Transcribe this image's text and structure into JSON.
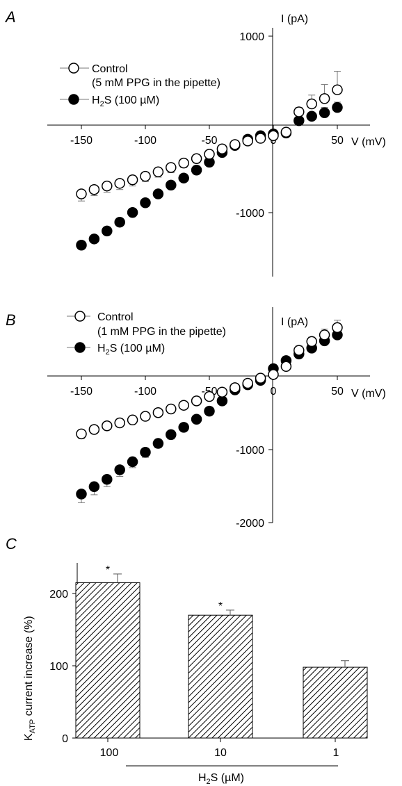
{
  "chart_data": [
    {
      "type": "scatter",
      "panel_label": "A",
      "xlabel": "V (mV)",
      "ylabel": "I (pA)",
      "x_ticks": [
        "-150",
        "-100",
        "-50",
        "0",
        "50"
      ],
      "y_ticks": [
        "1000",
        "-1000"
      ],
      "xlim": [
        -170,
        65
      ],
      "ylim": [
        -1420,
        1100
      ],
      "legend": [
        "Control",
        "(5 mM PPG in the pipette)",
        "H2S (100 µM)"
      ],
      "legend_position": "top-left",
      "series": [
        {
          "name": "Control",
          "marker": "open-circle",
          "x": [
            -150,
            -140,
            -130,
            -120,
            -110,
            -100,
            -90,
            -80,
            -70,
            -60,
            -50,
            -40,
            -30,
            -20,
            -10,
            0,
            10,
            20,
            30,
            40,
            50
          ],
          "y": [
            -780,
            -730,
            -690,
            -660,
            -620,
            -580,
            -530,
            -480,
            -430,
            -380,
            -330,
            -270,
            -220,
            -180,
            -150,
            -120,
            -80,
            150,
            240,
            300,
            400
          ],
          "error": [
            80,
            70,
            70,
            70,
            70,
            60,
            60,
            60,
            50,
            50,
            40,
            30,
            20,
            10,
            10,
            10,
            20,
            50,
            100,
            160,
            210
          ]
        },
        {
          "name": "H2S (100 µM)",
          "marker": "filled-circle",
          "x": [
            -150,
            -140,
            -130,
            -120,
            -110,
            -100,
            -90,
            -80,
            -70,
            -60,
            -50,
            -40,
            -30,
            -20,
            -10,
            0,
            10,
            20,
            30,
            40,
            50
          ],
          "y": [
            -1360,
            -1290,
            -1200,
            -1100,
            -990,
            -880,
            -780,
            -680,
            -600,
            -510,
            -420,
            -310,
            -230,
            -160,
            -120,
            -100,
            -90,
            50,
            100,
            140,
            200
          ],
          "error": [
            40,
            40,
            40,
            40,
            40,
            40,
            40,
            30,
            30,
            30,
            30,
            30,
            20,
            20,
            20,
            10,
            20,
            30,
            40,
            60,
            60
          ]
        }
      ]
    },
    {
      "type": "scatter",
      "panel_label": "B",
      "xlabel": "V (mV)",
      "ylabel": "I (pA)",
      "x_ticks": [
        "-150",
        "-100",
        "-50",
        "0",
        "50"
      ],
      "y_ticks": [
        "-1000",
        "-2000"
      ],
      "xlim": [
        -170,
        65
      ],
      "ylim": [
        -2100,
        950
      ],
      "legend": [
        "Control",
        "(1 mM PPG in the pipette)",
        "H2S (100 µM)"
      ],
      "legend_position": "top-left",
      "series": [
        {
          "name": "Control",
          "marker": "open-circle",
          "x": [
            -150,
            -140,
            -130,
            -120,
            -110,
            -100,
            -90,
            -80,
            -70,
            -60,
            -50,
            -40,
            -30,
            -20,
            -10,
            0,
            10,
            20,
            30,
            40,
            50
          ],
          "y": [
            -790,
            -730,
            -680,
            -640,
            -600,
            -550,
            -500,
            -450,
            -400,
            -340,
            -280,
            -220,
            -160,
            -100,
            -30,
            20,
            130,
            350,
            470,
            560,
            660
          ],
          "error": [
            60,
            50,
            50,
            50,
            50,
            50,
            40,
            40,
            40,
            40,
            40,
            30,
            30,
            30,
            20,
            20,
            30,
            60,
            60,
            80,
            100
          ]
        },
        {
          "name": "H2S (100 µM)",
          "marker": "filled-circle",
          "x": [
            -150,
            -140,
            -130,
            -120,
            -110,
            -100,
            -90,
            -80,
            -70,
            -60,
            -50,
            -40,
            -30,
            -20,
            -10,
            0,
            10,
            20,
            30,
            40,
            50
          ],
          "y": [
            -1610,
            -1510,
            -1410,
            -1280,
            -1170,
            -1040,
            -920,
            -800,
            -700,
            -590,
            -480,
            -340,
            -190,
            -120,
            -60,
            100,
            210,
            300,
            380,
            480,
            560
          ],
          "error": [
            120,
            110,
            100,
            90,
            80,
            70,
            60,
            60,
            50,
            50,
            40,
            40,
            30,
            30,
            30,
            30,
            40,
            60,
            70,
            90,
            110
          ]
        }
      ]
    },
    {
      "type": "bar",
      "panel_label": "C",
      "ylabel": "KATP current increase (%)",
      "ylabel_main": "K",
      "ylabel_sub": "ATP",
      "ylabel_rest": " current increase (%)",
      "xlabel": "H2S (µM)",
      "xlabel_pre": "H",
      "xlabel_sub": "2",
      "xlabel_post": "S (µM)",
      "categories": [
        "100",
        "10",
        "1"
      ],
      "values": [
        215,
        170,
        98
      ],
      "error": [
        12,
        7,
        9
      ],
      "significance": [
        "*",
        "*",
        ""
      ],
      "y_ticks": [
        "0",
        "100",
        "200"
      ],
      "ylim": [
        0,
        250
      ],
      "fill_pattern": "diagonal hatch"
    }
  ]
}
